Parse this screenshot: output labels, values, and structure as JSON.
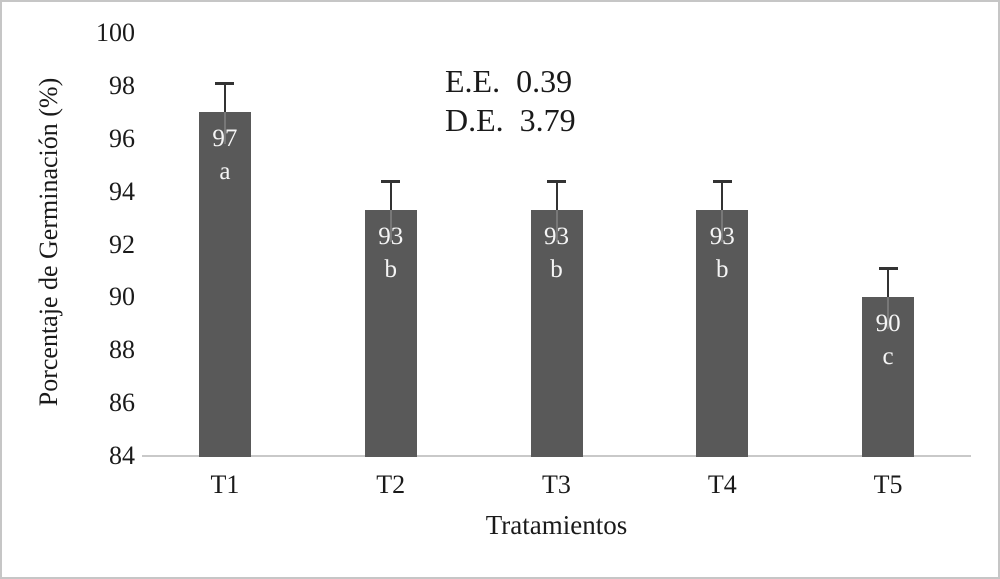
{
  "figure": {
    "background": "#ffffff",
    "border_color": "#c6c6c6"
  },
  "chart_data": {
    "type": "bar",
    "title": "",
    "xlabel": "Tratamientos",
    "ylabel": "Porcentaje de Germinación (%)",
    "categories": [
      "T1",
      "T2",
      "T3",
      "T4",
      "T5"
    ],
    "values": [
      97,
      93.3,
      93.3,
      93.3,
      90
    ],
    "value_labels": [
      "97",
      "93",
      "93",
      "93",
      "90"
    ],
    "group_letters": [
      "a",
      "b",
      "b",
      "b",
      "c"
    ],
    "error_plus": [
      1.1,
      1.1,
      1.1,
      1.1,
      1.1
    ],
    "ylim": [
      84,
      100
    ],
    "ytick_step": 2,
    "yticks": [
      84,
      86,
      88,
      90,
      92,
      94,
      96,
      98,
      100
    ],
    "annotations": [
      "E.E. 0.39",
      "D.E. 3.79"
    ],
    "legend": "none",
    "grid": "off",
    "bar_color": "#595959",
    "error_bar_color": "#333333",
    "error_inner_color": "#787878",
    "baseline_color": "#c9c9c9",
    "bar_label_color": "#f5f5f5",
    "text_color": "#1a1a1a"
  }
}
